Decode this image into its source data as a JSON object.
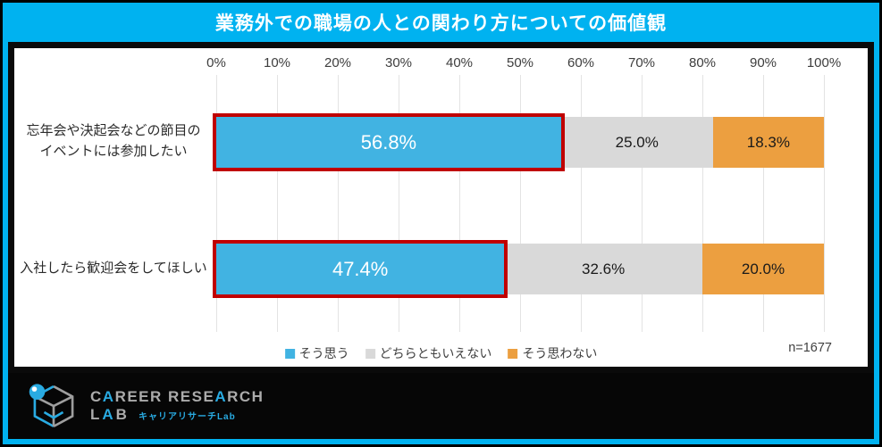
{
  "title": "業務外での職場の人との関わり方についての価値観",
  "colors": {
    "frame": "#00B2F0",
    "title_text": "#FFFFFF",
    "panel_bg": "#FFFFFF",
    "panel_border": "#0A0A0A",
    "footer_bg": "#060606",
    "highlight": "#C00000",
    "logo_cyan": "#29ABE2",
    "logo_gray": "#ABABAB"
  },
  "chart_data": {
    "type": "bar",
    "orientation": "horizontal-stacked",
    "title": "業務外での職場の人との関わり方についての価値観",
    "categories": [
      [
        "忘年会や決起会などの節目の",
        "イベントには参加したい"
      ],
      [
        "入社したら歓迎会をしてほしい"
      ]
    ],
    "series": [
      {
        "name": "そう思う",
        "color": "#41B3E2",
        "values": [
          56.8,
          47.4
        ]
      },
      {
        "name": "どちらともいえない",
        "color": "#D9D9D9",
        "values": [
          25.0,
          32.6
        ]
      },
      {
        "name": "そう思わない",
        "color": "#EC9F40",
        "values": [
          18.3,
          20.0
        ]
      }
    ],
    "value_labels": [
      [
        "56.8%",
        "25.0%",
        "18.3%"
      ],
      [
        "47.4%",
        "32.6%",
        "20.0%"
      ]
    ],
    "x_ticks": [
      "0%",
      "10%",
      "20%",
      "30%",
      "40%",
      "50%",
      "60%",
      "70%",
      "80%",
      "90%",
      "100%"
    ],
    "xlim": [
      0,
      100
    ],
    "grid": true,
    "legend_position": "bottom-center",
    "highlight_color": "#C00000",
    "sample_size": "n=1677"
  },
  "footer": {
    "logo_line1": "CAREER RESEARCH",
    "logo_line1_parts": [
      "C",
      "A",
      "REER RESE",
      "A",
      "RCH"
    ],
    "logo_line2": "LAB",
    "logo_line2_parts": [
      "L",
      "A",
      "B"
    ],
    "logo_sub": "キャリアリサーチLab"
  }
}
